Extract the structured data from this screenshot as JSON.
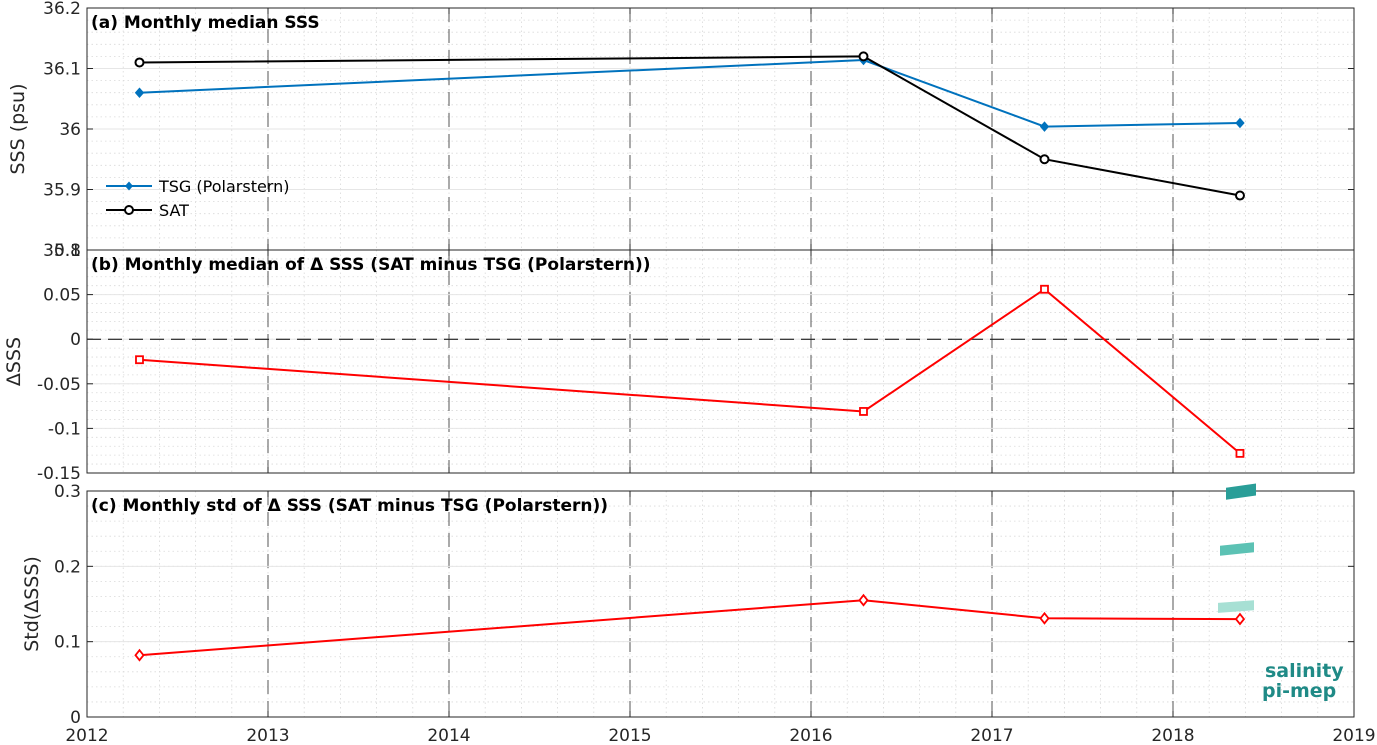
{
  "chart_data": [
    {
      "type": "line",
      "title": "(a) Monthly median SSS",
      "xlabel": "",
      "ylabel": "SSS (psu)",
      "xlim": [
        2012,
        2019
      ],
      "ylim": [
        35.8,
        36.2
      ],
      "xticks": [
        "2012",
        "2013",
        "2014",
        "2015",
        "2016",
        "2017",
        "2018",
        "2019"
      ],
      "yticks": [
        "35.8",
        "35.9",
        "36",
        "36.1",
        "36.2"
      ],
      "grid": true,
      "legend": "bottom-left",
      "x": [
        2012.29,
        2016.29,
        2017.29,
        2018.37
      ],
      "series": [
        {
          "name": "TSG (Polarstern)",
          "color": "#0072bd",
          "marker": "filled-diamond",
          "values": [
            36.06,
            36.114,
            36.004,
            36.01
          ]
        },
        {
          "name": "SAT",
          "color": "#000000",
          "marker": "circle",
          "values": [
            36.11,
            36.12,
            35.95,
            35.89
          ]
        }
      ]
    },
    {
      "type": "line",
      "title": "(b) Monthly median of Δ SSS (SAT minus TSG (Polarstern))",
      "xlabel": "",
      "ylabel": "ΔSSS",
      "xlim": [
        2012,
        2019
      ],
      "ylim": [
        -0.15,
        0.1
      ],
      "yticks": [
        "-0.15",
        "-0.1",
        "-0.05",
        "0",
        "0.05",
        "0.1"
      ],
      "grid": true,
      "zero_line": true,
      "x": [
        2012.29,
        2016.29,
        2017.29,
        2018.37
      ],
      "series": [
        {
          "name": "",
          "color": "#ff0000",
          "marker": "square",
          "values": [
            -0.023,
            -0.081,
            0.056,
            -0.128
          ]
        }
      ]
    },
    {
      "type": "line",
      "title": "(c) Monthly std of Δ SSS (SAT minus TSG (Polarstern))",
      "xlabel": "",
      "ylabel": "Std(ΔSSS)",
      "xlim": [
        2012,
        2019
      ],
      "ylim": [
        0,
        0.3
      ],
      "yticks": [
        "0",
        "0.1",
        "0.2",
        "0.3"
      ],
      "grid": true,
      "x": [
        2012.29,
        2016.29,
        2017.29,
        2018.37
      ],
      "series": [
        {
          "name": "",
          "color": "#ff0000",
          "marker": "diamond",
          "values": [
            0.082,
            0.155,
            0.131,
            0.13
          ]
        }
      ]
    }
  ],
  "logo": {
    "line1": "salinity",
    "line2": "pi-mep",
    "color": "#1f8a86"
  }
}
